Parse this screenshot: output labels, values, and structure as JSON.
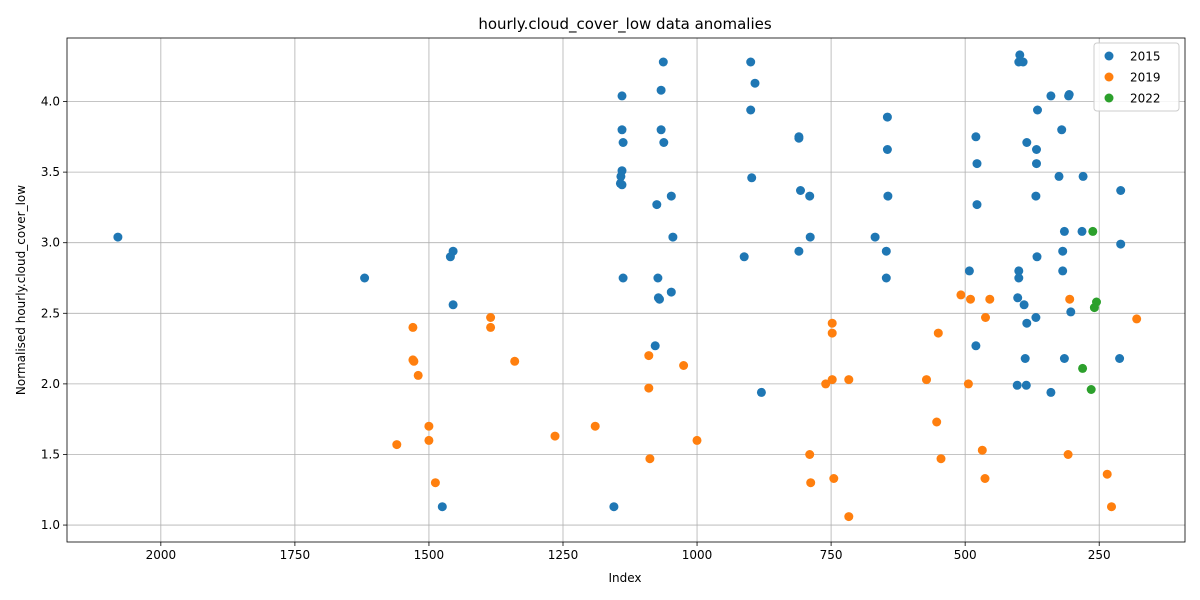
{
  "chart_data": {
    "type": "scatter",
    "title": "hourly.cloud_cover_low data anomalies",
    "xlabel": "Index",
    "ylabel": "Normalised hourly.cloud_cover_low",
    "x_inverted": true,
    "xlim": [
      2175,
      90
    ],
    "ylim": [
      0.88,
      4.45
    ],
    "x_ticks": [
      2000,
      1750,
      1500,
      1250,
      1000,
      750,
      500,
      250
    ],
    "y_ticks": [
      "1.0",
      "1.5",
      "2.0",
      "2.5",
      "3.0",
      "3.5",
      "4.0"
    ],
    "grid": true,
    "legend_position": "top-right",
    "series": [
      {
        "name": "2015",
        "color": "#1f77b4",
        "points": [
          [
            2080,
            3.04
          ],
          [
            1620,
            2.75
          ],
          [
            1455,
            2.94
          ],
          [
            1460,
            2.9
          ],
          [
            1455,
            2.56
          ],
          [
            1475,
            1.13
          ],
          [
            1140,
            4.04
          ],
          [
            1140,
            3.8
          ],
          [
            1138,
            3.71
          ],
          [
            1140,
            3.51
          ],
          [
            1142,
            3.47
          ],
          [
            1143,
            3.42
          ],
          [
            1140,
            3.41
          ],
          [
            1138,
            2.75
          ],
          [
            1155,
            1.13
          ],
          [
            1063,
            4.28
          ],
          [
            1067,
            4.08
          ],
          [
            1067,
            3.8
          ],
          [
            1062,
            3.71
          ],
          [
            1048,
            3.33
          ],
          [
            1075,
            3.27
          ],
          [
            1045,
            3.04
          ],
          [
            1073,
            2.75
          ],
          [
            1072,
            2.61
          ],
          [
            1070,
            2.6
          ],
          [
            1048,
            2.65
          ],
          [
            1078,
            2.27
          ],
          [
            900,
            4.28
          ],
          [
            892,
            4.13
          ],
          [
            900,
            3.94
          ],
          [
            898,
            3.46
          ],
          [
            912,
            2.9
          ],
          [
            880,
            1.94
          ],
          [
            810,
            3.75
          ],
          [
            810,
            3.74
          ],
          [
            807,
            3.37
          ],
          [
            790,
            3.33
          ],
          [
            789,
            3.04
          ],
          [
            810,
            2.94
          ],
          [
            645,
            3.89
          ],
          [
            645,
            3.66
          ],
          [
            644,
            3.33
          ],
          [
            668,
            3.04
          ],
          [
            647,
            2.94
          ],
          [
            647,
            2.75
          ],
          [
            480,
            3.75
          ],
          [
            478,
            3.56
          ],
          [
            478,
            3.27
          ],
          [
            492,
            2.8
          ],
          [
            480,
            2.27
          ],
          [
            398,
            4.33
          ],
          [
            400,
            4.28
          ],
          [
            392,
            4.28
          ],
          [
            365,
            3.94
          ],
          [
            385,
            3.71
          ],
          [
            367,
            3.66
          ],
          [
            367,
            3.56
          ],
          [
            368,
            3.33
          ],
          [
            366,
            2.9
          ],
          [
            400,
            2.8
          ],
          [
            400,
            2.75
          ],
          [
            402,
            2.61
          ],
          [
            390,
            2.56
          ],
          [
            368,
            2.47
          ],
          [
            385,
            2.43
          ],
          [
            388,
            2.18
          ],
          [
            403,
            1.99
          ],
          [
            386,
            1.99
          ],
          [
            340,
            4.04
          ],
          [
            340,
            1.94
          ],
          [
            306,
            4.05
          ],
          [
            307,
            4.04
          ],
          [
            320,
            3.8
          ],
          [
            325,
            3.47
          ],
          [
            280,
            3.47
          ],
          [
            315,
            3.08
          ],
          [
            282,
            3.08
          ],
          [
            318,
            2.94
          ],
          [
            318,
            2.8
          ],
          [
            303,
            2.51
          ],
          [
            315,
            2.18
          ],
          [
            210,
            3.37
          ],
          [
            210,
            2.99
          ],
          [
            212,
            2.18
          ]
        ]
      },
      {
        "name": "2019",
        "color": "#ff7f0e",
        "points": [
          [
            1530,
            2.4
          ],
          [
            1530,
            2.17
          ],
          [
            1528,
            2.16
          ],
          [
            1520,
            2.06
          ],
          [
            1560,
            1.57
          ],
          [
            1500,
            1.7
          ],
          [
            1500,
            1.6
          ],
          [
            1488,
            1.3
          ],
          [
            1385,
            2.47
          ],
          [
            1385,
            2.4
          ],
          [
            1340,
            2.16
          ],
          [
            1265,
            1.63
          ],
          [
            1190,
            1.7
          ],
          [
            1090,
            2.2
          ],
          [
            1090,
            1.97
          ],
          [
            1088,
            1.47
          ],
          [
            1025,
            2.13
          ],
          [
            1000,
            1.6
          ],
          [
            748,
            2.43
          ],
          [
            748,
            2.36
          ],
          [
            748,
            2.03
          ],
          [
            760,
            2.0
          ],
          [
            790,
            1.5
          ],
          [
            788,
            1.3
          ],
          [
            745,
            1.33
          ],
          [
            717,
            2.03
          ],
          [
            717,
            1.06
          ],
          [
            572,
            2.03
          ],
          [
            553,
            1.73
          ],
          [
            550,
            2.36
          ],
          [
            545,
            1.47
          ],
          [
            508,
            2.63
          ],
          [
            490,
            2.6
          ],
          [
            494,
            2.0
          ],
          [
            462,
            2.47
          ],
          [
            454,
            2.6
          ],
          [
            468,
            1.53
          ],
          [
            463,
            1.33
          ],
          [
            305,
            2.6
          ],
          [
            308,
            1.5
          ],
          [
            235,
            1.36
          ],
          [
            227,
            1.13
          ],
          [
            180,
            2.46
          ]
        ]
      },
      {
        "name": "2022",
        "color": "#2ca02c",
        "points": [
          [
            262,
            3.08
          ],
          [
            255,
            2.58
          ],
          [
            259,
            2.54
          ],
          [
            281,
            2.11
          ],
          [
            265,
            1.96
          ]
        ]
      }
    ]
  }
}
